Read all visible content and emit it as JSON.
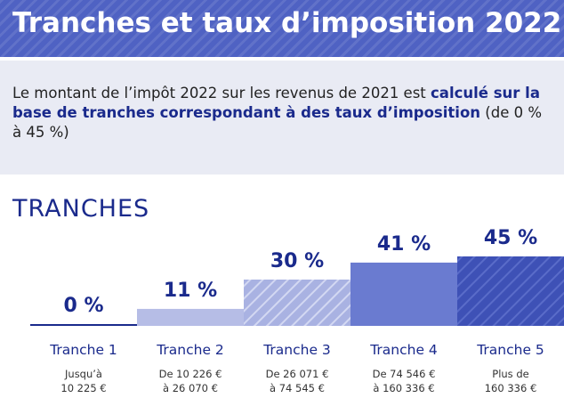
{
  "header": {
    "title": "Tranches et taux d’imposition 2022"
  },
  "intro": {
    "text_plain": "Le montant de l’impôt 2022 sur les revenus de 2021 est ",
    "text_strong": "calculé sur la base de tranches correspondant à des taux d’imposition",
    "text_end": " (de 0 % à 45 %)"
  },
  "section": {
    "title": "TRANCHES"
  },
  "colors": {
    "primary": "#4f62c3",
    "dark_blue": "#1a2a8c",
    "light_blue": "#b6bde6",
    "intro_bg": "#e9ebf4"
  },
  "chart_data": {
    "type": "bar",
    "categories": [
      "Tranche 1",
      "Tranche 2",
      "Tranche 3",
      "Tranche 4",
      "Tranche 5"
    ],
    "values": [
      0,
      11,
      30,
      41,
      45
    ],
    "value_labels": [
      "0 %",
      "11 %",
      "30 %",
      "41 %",
      "45 %"
    ],
    "ranges": [
      [
        "Jusqu’à",
        "10 225 €"
      ],
      [
        "De 10 226 €",
        "à 26 070 €"
      ],
      [
        "De 26 071 €",
        "à 74 545 €"
      ],
      [
        "De 74 546 €",
        "à 160 336 €"
      ],
      [
        "Plus de",
        "160 336 €"
      ]
    ],
    "ylim": [
      0,
      45
    ]
  }
}
